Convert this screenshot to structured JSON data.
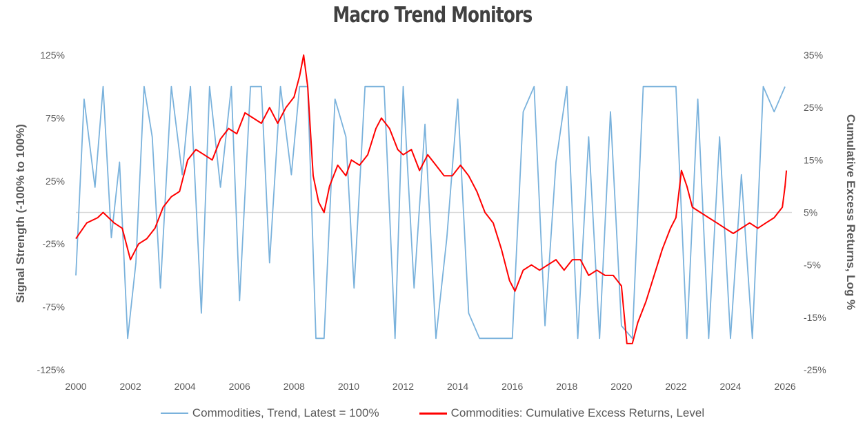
{
  "title": "Macro Trend Monitors",
  "chart_data": {
    "type": "line",
    "title": "Macro Trend Monitors",
    "xlabel": "",
    "x_range": [
      "2000-01",
      "2026-04"
    ],
    "x_ticks": [
      "2000",
      "2002",
      "2004",
      "2006",
      "2008",
      "2010",
      "2012",
      "2014",
      "2016",
      "2018",
      "2020",
      "2022",
      "2024",
      "2026"
    ],
    "y_left": {
      "label": "Signal Strength (-100% to 100%)",
      "range": [
        -125,
        125
      ],
      "ticks": [
        "125%",
        "75%",
        "25%",
        "-25%",
        "-75%",
        "-125%"
      ],
      "tick_values": [
        125,
        75,
        25,
        -25,
        -75,
        -125
      ]
    },
    "y_right": {
      "label": "Cumulative Excess Returns, Log %",
      "range": [
        -25,
        35
      ],
      "ticks": [
        "35%",
        "25%",
        "15%",
        "5%",
        "-5%",
        "-15%",
        "-25%"
      ],
      "tick_values": [
        35,
        25,
        15,
        5,
        -5,
        -15,
        -25
      ]
    },
    "legend_position": "bottom",
    "series": [
      {
        "name": "Commodities, Trend, Latest = 100%",
        "axis": "left",
        "color": "#7ab2dc",
        "x": [
          2000.0,
          2000.3,
          2000.7,
          2001.0,
          2001.3,
          2001.6,
          2001.9,
          2002.2,
          2002.5,
          2002.8,
          2003.1,
          2003.5,
          2003.9,
          2004.2,
          2004.6,
          2004.9,
          2005.3,
          2005.7,
          2006.0,
          2006.4,
          2006.8,
          2007.1,
          2007.5,
          2007.9,
          2008.2,
          2008.5,
          2008.8,
          2009.1,
          2009.5,
          2009.9,
          2010.2,
          2010.6,
          2011.0,
          2011.3,
          2011.7,
          2012.0,
          2012.4,
          2012.8,
          2013.2,
          2013.6,
          2014.0,
          2014.4,
          2014.8,
          2015.2,
          2015.6,
          2016.0,
          2016.4,
          2016.8,
          2017.2,
          2017.6,
          2018.0,
          2018.4,
          2018.8,
          2019.2,
          2019.6,
          2020.0,
          2020.4,
          2020.8,
          2021.2,
          2021.6,
          2022.0,
          2022.4,
          2022.8,
          2023.2,
          2023.6,
          2024.0,
          2024.4,
          2024.8,
          2025.2,
          2025.6,
          2026.0
        ],
        "values": [
          -50,
          90,
          20,
          100,
          -20,
          40,
          -100,
          -40,
          100,
          60,
          -60,
          100,
          30,
          100,
          -80,
          100,
          20,
          100,
          -70,
          100,
          100,
          -40,
          100,
          30,
          100,
          100,
          -100,
          -100,
          90,
          60,
          -60,
          100,
          100,
          100,
          -100,
          100,
          -60,
          70,
          -100,
          -20,
          90,
          -80,
          -100,
          -100,
          -100,
          -100,
          80,
          100,
          -90,
          40,
          100,
          -100,
          60,
          -100,
          80,
          -90,
          -100,
          100,
          100,
          100,
          100,
          -100,
          90,
          -100,
          60,
          -100,
          30,
          -100,
          100,
          80,
          100
        ]
      },
      {
        "name": "Commodities: Cumulative Excess Returns, Level",
        "axis": "right",
        "color": "#ff0000",
        "x": [
          2000.0,
          2000.4,
          2000.8,
          2001.0,
          2001.4,
          2001.7,
          2002.0,
          2002.3,
          2002.6,
          2002.9,
          2003.2,
          2003.5,
          2003.8,
          2004.1,
          2004.4,
          2004.7,
          2005.0,
          2005.3,
          2005.6,
          2005.9,
          2006.2,
          2006.5,
          2006.8,
          2007.1,
          2007.4,
          2007.7,
          2008.0,
          2008.2,
          2008.35,
          2008.5,
          2008.7,
          2008.9,
          2009.1,
          2009.3,
          2009.6,
          2009.9,
          2010.1,
          2010.4,
          2010.7,
          2011.0,
          2011.2,
          2011.5,
          2011.8,
          2012.0,
          2012.3,
          2012.6,
          2012.9,
          2013.2,
          2013.5,
          2013.8,
          2014.1,
          2014.4,
          2014.7,
          2015.0,
          2015.3,
          2015.6,
          2015.9,
          2016.1,
          2016.4,
          2016.7,
          2017.0,
          2017.3,
          2017.6,
          2017.9,
          2018.2,
          2018.5,
          2018.8,
          2019.1,
          2019.4,
          2019.7,
          2020.0,
          2020.2,
          2020.4,
          2020.6,
          2020.9,
          2021.2,
          2021.5,
          2021.8,
          2022.0,
          2022.2,
          2022.4,
          2022.6,
          2022.9,
          2023.2,
          2023.5,
          2023.8,
          2024.1,
          2024.4,
          2024.7,
          2025.0,
          2025.3,
          2025.6,
          2025.9,
          2026.0,
          2026.05
        ],
        "values": [
          0,
          3,
          4,
          5,
          3,
          2,
          -4,
          -1,
          0,
          2,
          6,
          8,
          9,
          15,
          17,
          16,
          15,
          19,
          21,
          20,
          24,
          23,
          22,
          25,
          22,
          25,
          27,
          31,
          35,
          29,
          12,
          7,
          5,
          10,
          14,
          12,
          15,
          14,
          16,
          21,
          23,
          21,
          17,
          16,
          17,
          13,
          16,
          14,
          12,
          12,
          14,
          12,
          9,
          5,
          3,
          -2,
          -8,
          -10,
          -6,
          -5,
          -6,
          -5,
          -4,
          -6,
          -4,
          -4,
          -7,
          -6,
          -7,
          -7,
          -9,
          -20,
          -20,
          -16,
          -12,
          -7,
          -2,
          2,
          4,
          13,
          10,
          6,
          5,
          4,
          3,
          2,
          1,
          2,
          3,
          2,
          3,
          4,
          6,
          10,
          13
        ]
      }
    ]
  }
}
